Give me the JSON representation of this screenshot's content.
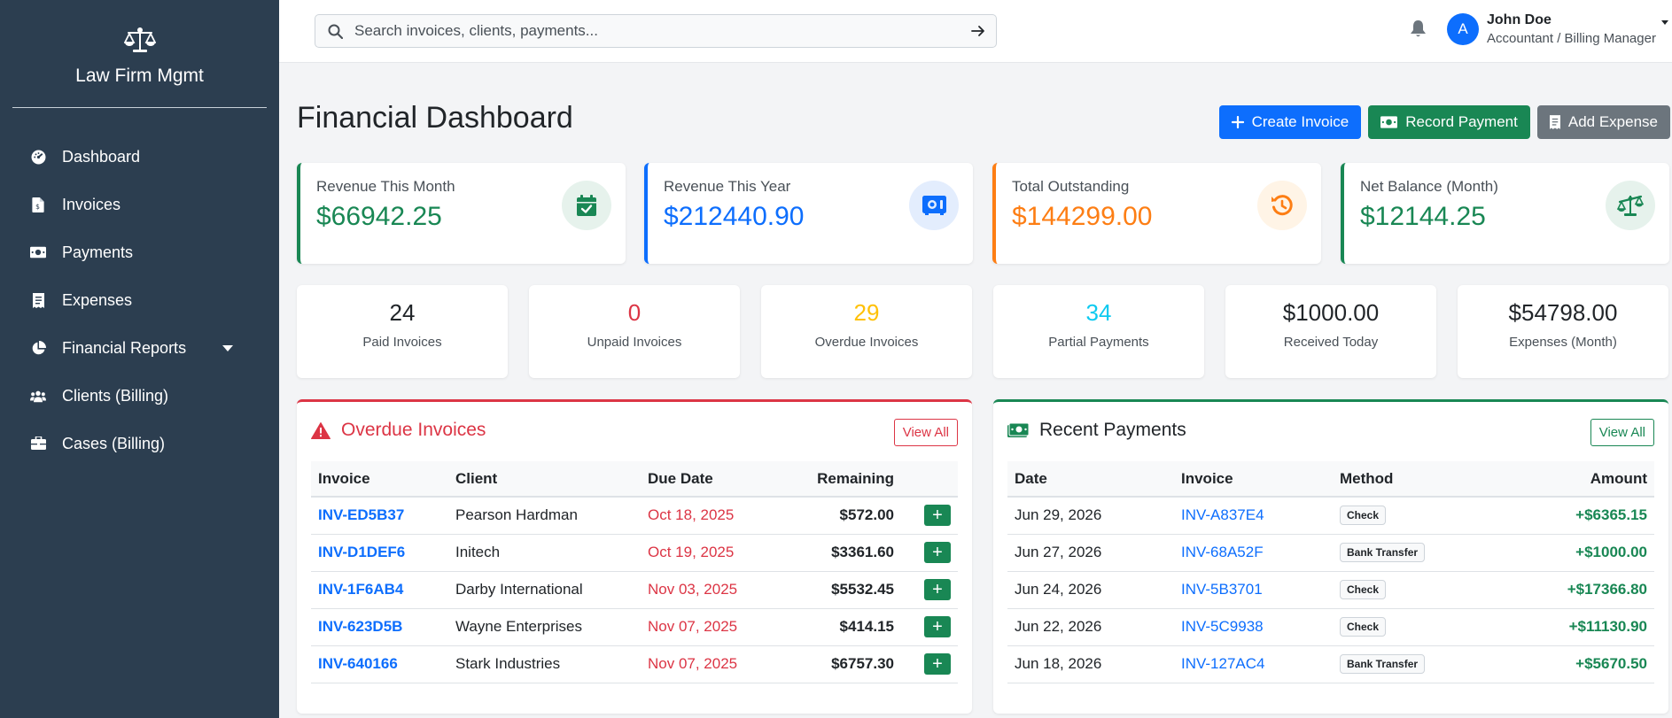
{
  "brand": {
    "name": "Law Firm Mgmt",
    "icon": "scale-icon"
  },
  "sidebar": {
    "items": [
      {
        "label": "Dashboard",
        "icon": "dashboard-icon"
      },
      {
        "label": "Invoices",
        "icon": "invoice-file-icon"
      },
      {
        "label": "Payments",
        "icon": "money-icon"
      },
      {
        "label": "Expenses",
        "icon": "receipt-icon"
      },
      {
        "label": "Financial Reports",
        "icon": "pie-chart-icon",
        "has_dropdown": true
      },
      {
        "label": "Clients (Billing)",
        "icon": "users-icon"
      },
      {
        "label": "Cases (Billing)",
        "icon": "briefcase-icon"
      }
    ]
  },
  "topbar": {
    "search_placeholder": "Search invoices, clients, payments...",
    "user": {
      "initial": "A",
      "name": "John Doe",
      "role": "Accountant / Billing Manager"
    }
  },
  "page": {
    "title": "Financial Dashboard",
    "actions": {
      "create_invoice": "Create Invoice",
      "record_payment": "Record Payment",
      "add_expense": "Add Expense"
    }
  },
  "stats": [
    {
      "label": "Revenue This Month",
      "value": "$66942.25",
      "color": "#198754",
      "icon": "calendar-check-icon"
    },
    {
      "label": "Revenue This Year",
      "value": "$212440.90",
      "color": "#0d6efd",
      "icon": "safe-icon"
    },
    {
      "label": "Total Outstanding",
      "value": "$144299.00",
      "color": "#fd7e14",
      "icon": "history-icon"
    },
    {
      "label": "Net Balance (Month)",
      "value": "$12144.25",
      "color": "#198754",
      "icon": "balance-scale-icon"
    }
  ],
  "counts": [
    {
      "value": "24",
      "label": "Paid Invoices",
      "color": "#212529"
    },
    {
      "value": "0",
      "label": "Unpaid Invoices",
      "color": "#dc3545"
    },
    {
      "value": "29",
      "label": "Overdue Invoices",
      "color": "#ffc107"
    },
    {
      "value": "34",
      "label": "Partial Payments",
      "color": "#0dcaf0"
    },
    {
      "value": "$1000.00",
      "label": "Received Today",
      "color": "#212529"
    },
    {
      "value": "$54798.00",
      "label": "Expenses (Month)",
      "color": "#212529"
    }
  ],
  "overdue": {
    "title": "Overdue Invoices",
    "view_all": "View All",
    "columns": [
      "Invoice",
      "Client",
      "Due Date",
      "Remaining"
    ],
    "rows": [
      {
        "invoice": "INV-ED5B37",
        "client": "Pearson Hardman",
        "due": "Oct 18, 2025",
        "remaining": "$572.00"
      },
      {
        "invoice": "INV-D1DEF6",
        "client": "Initech",
        "due": "Oct 19, 2025",
        "remaining": "$3361.60"
      },
      {
        "invoice": "INV-1F6AB4",
        "client": "Darby International",
        "due": "Nov 03, 2025",
        "remaining": "$5532.45"
      },
      {
        "invoice": "INV-623D5B",
        "client": "Wayne Enterprises",
        "due": "Nov 07, 2025",
        "remaining": "$414.15"
      },
      {
        "invoice": "INV-640166",
        "client": "Stark Industries",
        "due": "Nov 07, 2025",
        "remaining": "$6757.30"
      }
    ]
  },
  "payments": {
    "title": "Recent Payments",
    "view_all": "View All",
    "columns": [
      "Date",
      "Invoice",
      "Method",
      "Amount"
    ],
    "rows": [
      {
        "date": "Jun 29, 2026",
        "invoice": "INV-A837E4",
        "method": "Check",
        "amount": "+$6365.15"
      },
      {
        "date": "Jun 27, 2026",
        "invoice": "INV-68A52F",
        "method": "Bank Transfer",
        "amount": "+$1000.00"
      },
      {
        "date": "Jun 24, 2026",
        "invoice": "INV-5B3701",
        "method": "Check",
        "amount": "+$17366.80"
      },
      {
        "date": "Jun 22, 2026",
        "invoice": "INV-5C9938",
        "method": "Check",
        "amount": "+$11130.90"
      },
      {
        "date": "Jun 18, 2026",
        "invoice": "INV-127AC4",
        "method": "Bank Transfer",
        "amount": "+$5670.50"
      }
    ]
  }
}
